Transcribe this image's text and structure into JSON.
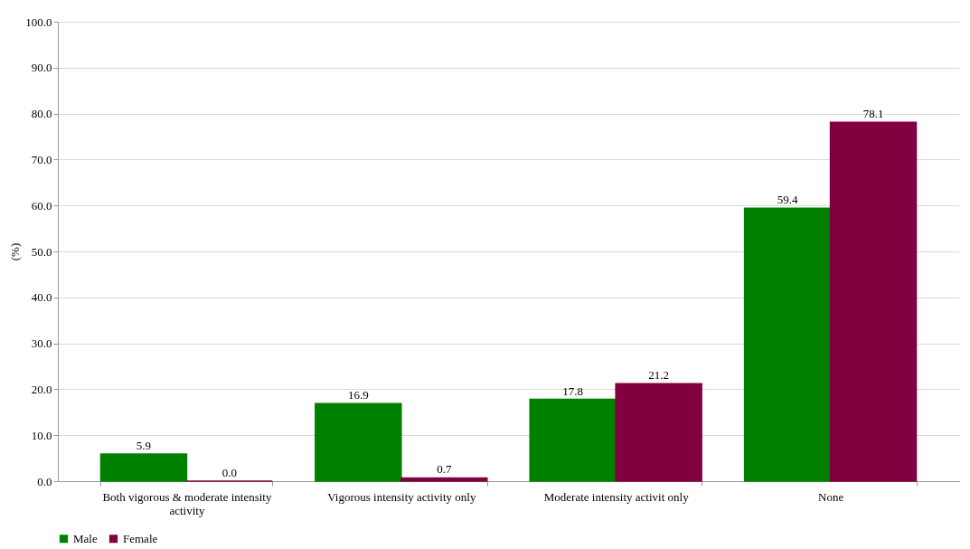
{
  "chart_data": {
    "type": "bar",
    "ylabel": "(%)",
    "categories": [
      "Both vigorous & moderate intensity activity",
      "Vigorous intensity activity only",
      "Moderate intensity activit only",
      "None"
    ],
    "series": [
      {
        "name": "Male",
        "color": "#008000",
        "values": [
          5.9,
          16.9,
          17.8,
          59.4
        ],
        "value_labels": [
          "5.9",
          "16.9",
          "17.8",
          "59.4"
        ]
      },
      {
        "name": "Female",
        "color": "#800040",
        "values": [
          0.0,
          0.7,
          21.2,
          78.1
        ],
        "value_labels": [
          "0.0",
          "0.7",
          "21.2",
          "78.1"
        ]
      }
    ],
    "ylim": [
      0,
      100
    ],
    "yticks": [
      "0.0",
      "10.0",
      "20.0",
      "30.0",
      "40.0",
      "50.0",
      "60.0",
      "70.0",
      "80.0",
      "90.0",
      "100.0"
    ],
    "grid": "y",
    "legend": "bottom"
  }
}
